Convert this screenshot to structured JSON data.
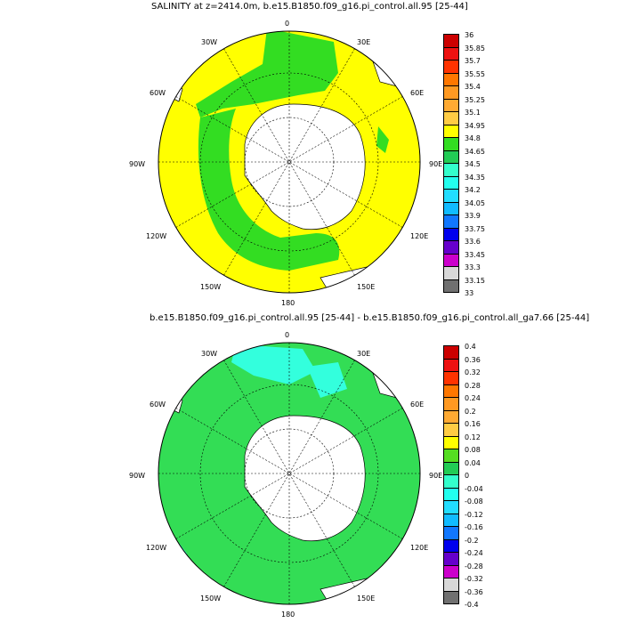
{
  "panels": [
    {
      "title": "SALINITY at z=2414.0m, b.e15.B1850.f09_g16.pi_control.all.95 [25-44]",
      "lon_labels": {
        "top": "0",
        "tr": "30E",
        "r1": "60E",
        "right": "90E",
        "r2": "120E",
        "br": "150E",
        "bottom": "180",
        "bl": "150W",
        "l2": "120W",
        "left": "90W",
        "l1": "60W",
        "tl": "30W"
      },
      "ocean_color": "#ffff00",
      "inner_color": "#33dd22",
      "colorbar": {
        "labels": [
          "36",
          "35.85",
          "35.7",
          "35.55",
          "35.4",
          "35.25",
          "35.1",
          "34.95",
          "34.8",
          "34.65",
          "34.5",
          "34.35",
          "34.2",
          "34.05",
          "33.9",
          "33.75",
          "33.6",
          "33.45",
          "33.3",
          "33.15",
          "33"
        ],
        "colors": [
          "#cc0000",
          "#ee1111",
          "#ff3300",
          "#ff7700",
          "#ff9922",
          "#ffaa33",
          "#ffcc44",
          "#ffff00",
          "#33dd22",
          "#22cc55",
          "#33ffcc",
          "#22ffee",
          "#22ddff",
          "#11bbff",
          "#1177ff",
          "#0000ee",
          "#6600cc",
          "#cc00cc",
          "#d8d8d8",
          "#707070"
        ]
      }
    },
    {
      "title": "b.e15.B1850.f09_g16.pi_control.all.95 [25-44] - b.e15.B1850.f09_g16.pi_control.all_ga7.66 [25-44]",
      "lon_labels": {
        "top": "0",
        "tr": "30E",
        "r1": "60E",
        "right": "90E",
        "r2": "120E",
        "br": "150E",
        "bottom": "180",
        "bl": "150W",
        "l2": "120W",
        "left": "90W",
        "l1": "60W",
        "tl": "30W"
      },
      "ocean_color": "#33dd55",
      "inner_color": "#33ffdd",
      "colorbar": {
        "labels": [
          "0.4",
          "0.36",
          "0.32",
          "0.28",
          "0.24",
          "0.2",
          "0.16",
          "0.12",
          "0.08",
          "0.04",
          "0",
          "-0.04",
          "-0.08",
          "-0.12",
          "-0.16",
          "-0.2",
          "-0.24",
          "-0.28",
          "-0.32",
          "-0.36",
          "-0.4"
        ],
        "colors": [
          "#cc0000",
          "#ee1111",
          "#ff3300",
          "#ff7700",
          "#ff9922",
          "#ffaa33",
          "#ffcc44",
          "#ffff00",
          "#55dd22",
          "#22cc55",
          "#33ffcc",
          "#22ffee",
          "#22ddff",
          "#11bbff",
          "#1177ff",
          "#0000ee",
          "#6600cc",
          "#cc00cc",
          "#d8d8d8",
          "#707070"
        ]
      }
    }
  ]
}
